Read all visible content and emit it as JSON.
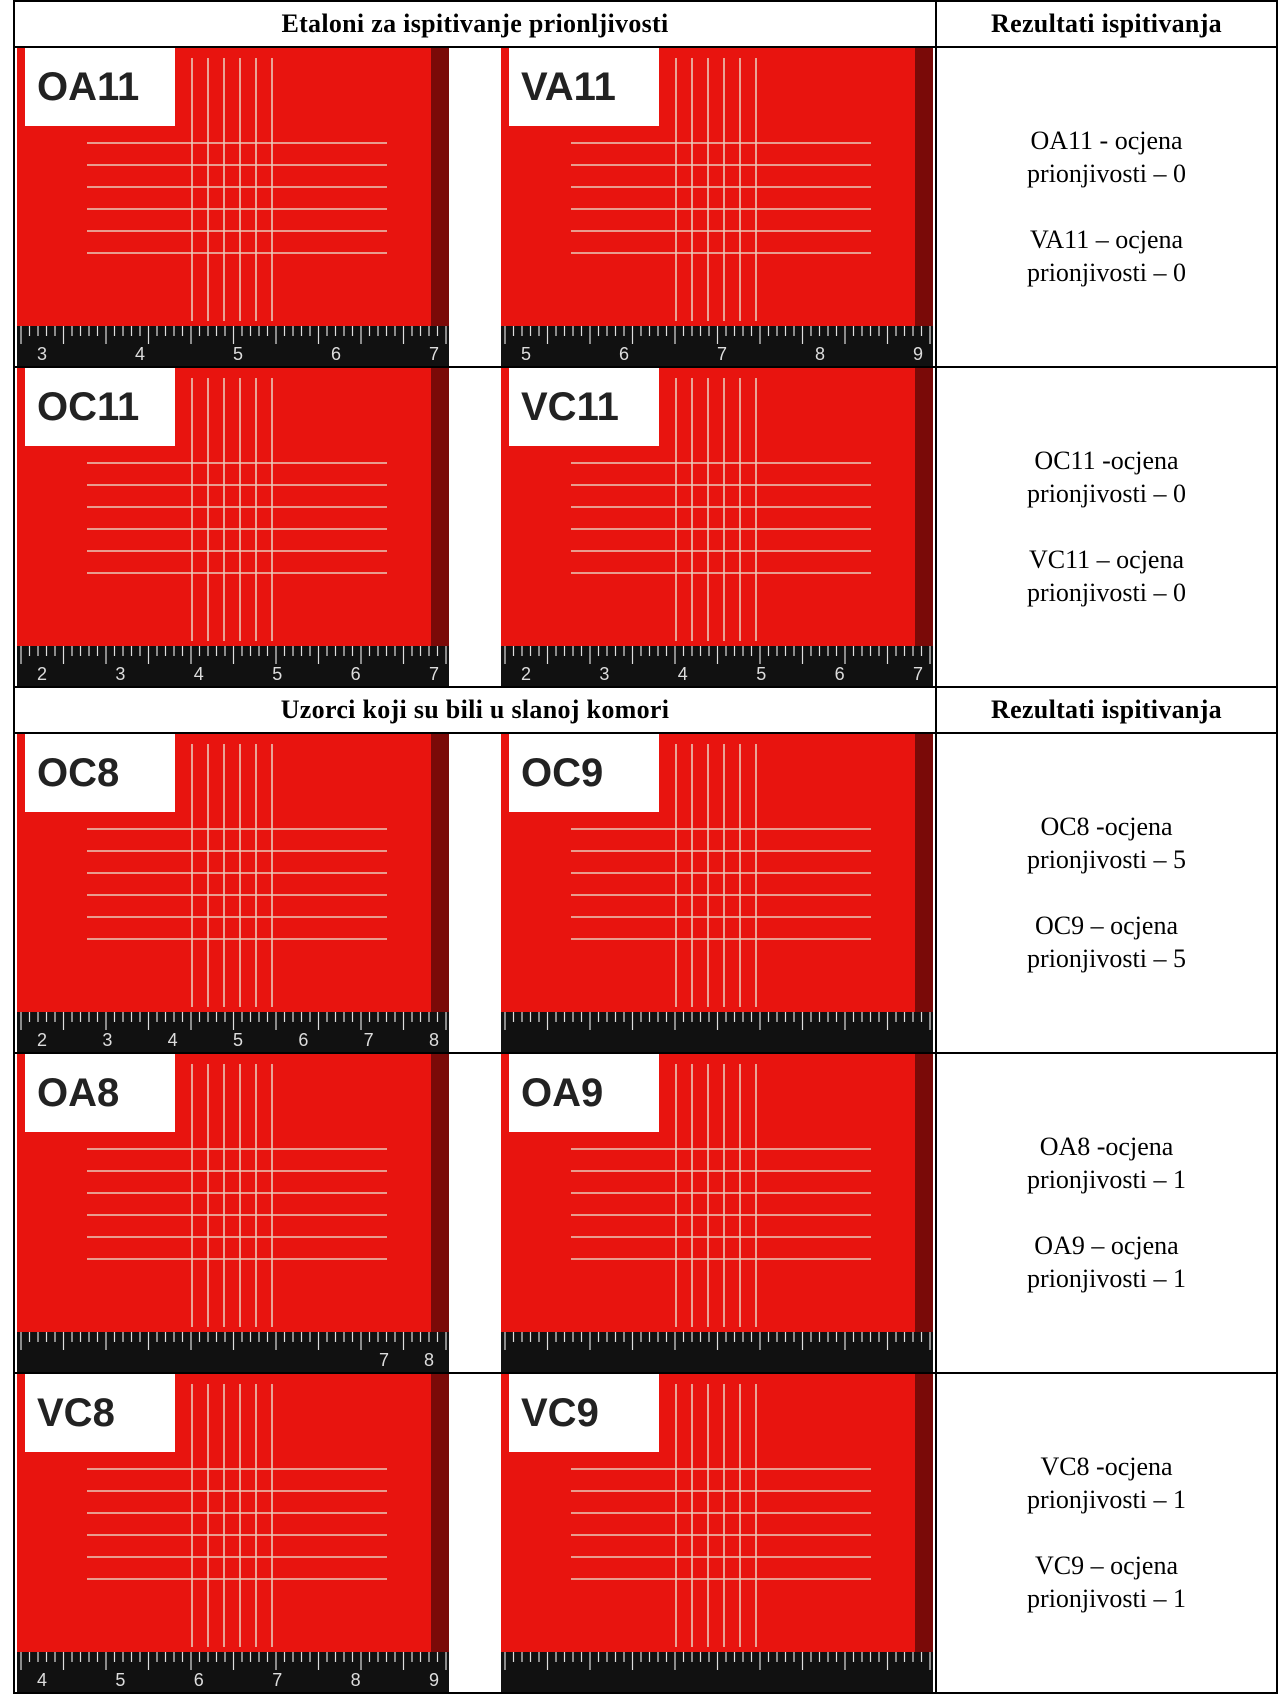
{
  "table": {
    "sections": [
      {
        "header": [
          "Etaloni za ispitivanje prionljivosti",
          "Rezultati ispitivanja"
        ],
        "rows": [
          {
            "photos": [
              {
                "label": "OA11",
                "ruler": [
                  "3",
                  "4",
                  "5",
                  "6",
                  "7"
                ]
              },
              {
                "label": "VA11",
                "ruler": [
                  "5",
                  "6",
                  "7",
                  "8",
                  "9"
                ]
              }
            ],
            "results": [
              "OA11 - ocjena prionjivosti – 0",
              "VA11 – ocjena prionjivosti – 0"
            ]
          },
          {
            "photos": [
              {
                "label": "OC11",
                "ruler": [
                  "2",
                  "3",
                  "4",
                  "5",
                  "6",
                  "7"
                ]
              },
              {
                "label": "VC11",
                "ruler": [
                  "2",
                  "3",
                  "4",
                  "5",
                  "6",
                  "7"
                ]
              }
            ],
            "results": [
              "OC11 -ocjena prionjivosti – 0",
              "VC11 – ocjena prionjivosti – 0"
            ]
          }
        ]
      },
      {
        "header": [
          "Uzorci koji su bili u slanoj komori",
          "Rezultati ispitivanja"
        ],
        "rows": [
          {
            "photos": [
              {
                "label": "OC8",
                "ruler": [
                  "2",
                  "3",
                  "4",
                  "5",
                  "6",
                  "7",
                  "8"
                ]
              },
              {
                "label": "OC9"
              }
            ],
            "results": [
              "OC8 -ocjena prionjivosti – 5",
              "OC9 – ocjena prionjivosti – 5"
            ]
          },
          {
            "photos": [
              {
                "label": "OA8",
                "ruler": [
                  "7",
                  "8"
                ]
              },
              {
                "label": "OA9"
              }
            ],
            "results": [
              "OA8 -ocjena prionjivosti – 1",
              "OA9 – ocjena prionjivosti – 1"
            ]
          },
          {
            "photos": [
              {
                "label": "VC8",
                "ruler": [
                  "4",
                  "5",
                  "6",
                  "7",
                  "8",
                  "9"
                ]
              },
              {
                "label": "VC9"
              }
            ],
            "results": [
              "VC8 -ocjena prionjivosti – 1",
              "VC9 – ocjena prionjivosti – 1"
            ]
          }
        ]
      }
    ]
  }
}
